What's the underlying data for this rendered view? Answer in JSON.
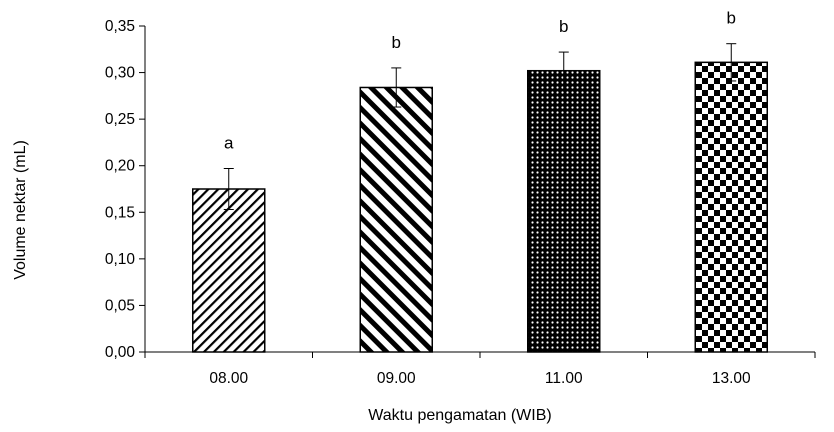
{
  "chart_data": {
    "type": "bar",
    "categories": [
      "08.00",
      "09.00",
      "11.00",
      "13.00"
    ],
    "values": [
      0.175,
      0.284,
      0.302,
      0.311
    ],
    "errors": [
      0.022,
      0.021,
      0.02,
      0.02
    ],
    "significance_labels": [
      "a",
      "b",
      "b",
      "b"
    ],
    "patterns": [
      "thin-diagonal-stripes",
      "wide-diagonal-stripes",
      "dots",
      "checkerboard"
    ],
    "xlabel": "Waktu pengamatan (WIB)",
    "ylabel": "Volume nektar (mL)",
    "ylim": [
      0,
      0.35
    ],
    "yticks": [
      "0,00",
      "0,05",
      "0,10",
      "0,15",
      "0,20",
      "0,25",
      "0,30",
      "0,35"
    ],
    "grid": false,
    "legend": "none"
  }
}
